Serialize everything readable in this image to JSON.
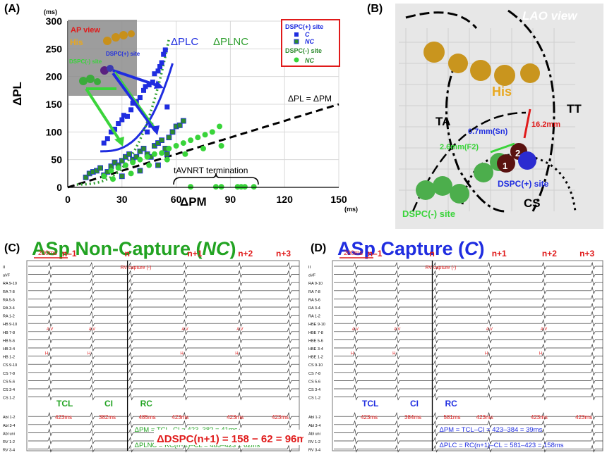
{
  "panels": {
    "a": "(A)",
    "b": "(B)",
    "c": "(C)",
    "d": "(D)"
  },
  "chart_data": {
    "type": "scatter",
    "xlabel": "ΔPM",
    "ylabel": "ΔPL",
    "x_unit": "(ms)",
    "y_unit": "(ms)",
    "xlim": [
      0,
      150
    ],
    "ylim": [
      0,
      300
    ],
    "xticks": [
      0,
      30,
      60,
      90,
      120,
      150
    ],
    "yticks": [
      0,
      50,
      100,
      150,
      200,
      250,
      300
    ],
    "grid": true,
    "legend_placement": "top-right",
    "legend": {
      "header1": "DSPC(+) site",
      "item1": "C",
      "item2": "NC",
      "header2": "DSPC(-) site",
      "item3": "NC"
    },
    "curve_labels": {
      "c": "ΔPLC",
      "nc": "ΔPLNC",
      "identity": "ΔPL = ΔPM"
    },
    "termination_label": "tAVNRT termination",
    "inset": {
      "title": "AP view",
      "his": "His",
      "plus": "DSPC(+)\nsite",
      "minus": "DSPC(-)\nsite"
    },
    "colors": {
      "capture": "#1f2de0",
      "nc_square": "#2e8b2e",
      "nc_circle": "#39d43a",
      "identity": "#000000",
      "legend_border": "#e01a1a"
    },
    "series": [
      {
        "name": "DSPC(+) site C",
        "marker": "square",
        "color": "#1f2de0",
        "points": [
          [
            20,
            80
          ],
          [
            22,
            88
          ],
          [
            24,
            100
          ],
          [
            26,
            105
          ],
          [
            28,
            115
          ],
          [
            30,
            122
          ],
          [
            31,
            130
          ],
          [
            33,
            128
          ],
          [
            35,
            140
          ],
          [
            36,
            152
          ],
          [
            38,
            155
          ],
          [
            40,
            162
          ],
          [
            42,
            175
          ],
          [
            43,
            182
          ],
          [
            45,
            185
          ],
          [
            47,
            190
          ],
          [
            48,
            205
          ],
          [
            50,
            210
          ],
          [
            51,
            218
          ],
          [
            52,
            225
          ],
          [
            53,
            240
          ],
          [
            54,
            248
          ],
          [
            44,
            100
          ],
          [
            46,
            112
          ],
          [
            55,
            145
          ]
        ]
      },
      {
        "name": "DSPC(+) site NC",
        "marker": "square",
        "color": "#2e8b2e",
        "points": [
          [
            10,
            18
          ],
          [
            12,
            25
          ],
          [
            14,
            28
          ],
          [
            16,
            30
          ],
          [
            18,
            35
          ],
          [
            20,
            22
          ],
          [
            22,
            28
          ],
          [
            24,
            38
          ],
          [
            26,
            45
          ],
          [
            28,
            40
          ],
          [
            30,
            48
          ],
          [
            32,
            55
          ],
          [
            34,
            60
          ],
          [
            36,
            50
          ],
          [
            38,
            55
          ],
          [
            40,
            65
          ],
          [
            42,
            70
          ],
          [
            44,
            60
          ],
          [
            46,
            55
          ],
          [
            48,
            75
          ],
          [
            50,
            80
          ],
          [
            52,
            85
          ],
          [
            54,
            70
          ],
          [
            56,
            90
          ],
          [
            58,
            100
          ],
          [
            60,
            110
          ],
          [
            62,
            112
          ],
          [
            64,
            120
          ],
          [
            30,
            20
          ],
          [
            40,
            30
          ],
          [
            50,
            40
          ],
          [
            55,
            60
          ]
        ]
      },
      {
        "name": "DSPC(-) site NC",
        "marker": "circle",
        "color": "#39d43a",
        "points": [
          [
            20,
            20
          ],
          [
            24,
            30
          ],
          [
            28,
            35
          ],
          [
            32,
            40
          ],
          [
            36,
            45
          ],
          [
            40,
            50
          ],
          [
            44,
            55
          ],
          [
            48,
            60
          ],
          [
            52,
            62
          ],
          [
            56,
            70
          ],
          [
            60,
            75
          ],
          [
            64,
            80
          ],
          [
            68,
            85
          ],
          [
            72,
            90
          ],
          [
            76,
            95
          ],
          [
            80,
            100
          ],
          [
            84,
            110
          ],
          [
            25,
            15
          ],
          [
            35,
            25
          ],
          [
            45,
            40
          ],
          [
            55,
            50
          ],
          [
            65,
            60
          ],
          [
            75,
            70
          ],
          [
            85,
            75
          ],
          [
            68,
            1
          ],
          [
            82,
            1
          ],
          [
            85,
            1
          ],
          [
            94,
            1
          ],
          [
            96,
            1
          ],
          [
            98,
            1
          ],
          [
            103,
            1
          ]
        ]
      }
    ]
  },
  "panel_b": {
    "view_label": "LAO view",
    "his": "His",
    "ta": "TA",
    "tt": "TT",
    "cs": "CS",
    "dspc_plus": "DSPC(+) site",
    "dspc_minus": "DSPC(-) site",
    "dist1": "16.2mm",
    "dist2": "0.7mm(Sn)",
    "dist3": "2.6mm(F2)",
    "num1": "1",
    "num2": "2"
  },
  "panel_c": {
    "title_main": "ASp Non-Capture (",
    "title_italic": "NC",
    "title_end": ")",
    "beats": [
      "n–1",
      "n",
      "n+1",
      "n+2",
      "n+3"
    ],
    "scale": "200ms",
    "rv_capture": "RV capture (-)",
    "tcl": "TCL",
    "ci": "CI",
    "rc": "RC",
    "tcl_val": "423ms",
    "ci_val": "382ms",
    "rc_val": "485ms",
    "later_vals": [
      "423ms",
      "423ms",
      "423ms"
    ],
    "eq1": "ΔPM = TCL–CI = 423–382 = 41ms",
    "eq2": "ΔPLNC = RC(n+1)–CL = 485–423 = 62ms",
    "eq_main": "ΔDSPC(n+1) = 158 − 62 = 96ms",
    "channels": [
      "II",
      "aVF",
      "RA 9-10",
      "RA 7-8",
      "RA 5-6",
      "RA 3-4",
      "RA 1-2",
      "HB 9-10",
      "HB 7-8",
      "HB 5-6",
      "HB 3-4",
      "HB 1-2",
      "CS 9-10",
      "CS 7-8",
      "CS 5-6",
      "CS 3-4",
      "CS 1-2",
      "Abl 1-2",
      "Abl 3-4",
      "Abl uni",
      "RV 1-2",
      "RV 3-4"
    ]
  },
  "panel_d": {
    "title_main": "ASp Capture (",
    "title_italic": "C",
    "title_end": ")",
    "beats": [
      "n–1",
      "n",
      "n+1",
      "n+2",
      "n+3"
    ],
    "scale": "200ms",
    "rv_capture": "RV capture (-)",
    "tcl": "TCL",
    "ci": "CI",
    "rc": "RC",
    "tcl_val": "423ms",
    "ci_val": "384ms",
    "rc_val": "581ms",
    "later_vals": [
      "423ms",
      "423ms",
      "423ms"
    ],
    "eq1": "ΔPM = TCL–CI = 423–384 = 39ms",
    "eq2": "ΔPLC = RC(n+1)–CL = 581–423 = 158ms",
    "channels": [
      "II",
      "aVF",
      "RA 9-10",
      "RA 7-8",
      "RA 5-6",
      "RA 3-4",
      "RA 1-2",
      "HBE 9-10",
      "HBE 7-8",
      "HBE 5-6",
      "HBE 3-4",
      "HBE 1-2",
      "CS 9-10",
      "CS 7-8",
      "CS 5-6",
      "CS 3-4",
      "CS 1-2",
      "Abl 1-2",
      "Abl 3-4",
      "Abl uni",
      "RV 1-2",
      "RV 3-4"
    ]
  },
  "av_labels": {
    "a": "A",
    "v": "V",
    "h": "H"
  }
}
